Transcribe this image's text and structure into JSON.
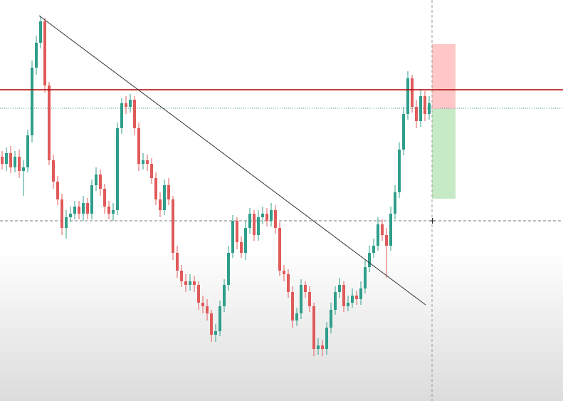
{
  "chart_data": {
    "type": "candlestick",
    "ylim": [
      37,
      600
    ],
    "up_color": "#2f9e8a",
    "down_color": "#e05a5a",
    "open": [
      380,
      370,
      385,
      365,
      380,
      360,
      365,
      410,
      505,
      540,
      570,
      480,
      375,
      345,
      320,
      280,
      295,
      300,
      310,
      300,
      315,
      300,
      340,
      355,
      335,
      310,
      300,
      305,
      420,
      455,
      450,
      460,
      420,
      370,
      375,
      370,
      350,
      320,
      305,
      340,
      320,
      245,
      220,
      205,
      200,
      205,
      200,
      175,
      170,
      160,
      130,
      135,
      170,
      200,
      245,
      290,
      260,
      245,
      280,
      300,
      270,
      295,
      300,
      290,
      305,
      280,
      220,
      215,
      190,
      150,
      160,
      200,
      190,
      170,
      110,
      115,
      110,
      140,
      165,
      190,
      200,
      170,
      175,
      185,
      180,
      195,
      225,
      245,
      255,
      285,
      270,
      255,
      300,
      330,
      390,
      440,
      490,
      450,
      430,
      465,
      440
    ],
    "high": [
      388,
      393,
      395,
      388,
      390,
      375,
      418,
      515,
      550,
      578,
      575,
      485,
      383,
      353,
      328,
      305,
      310,
      318,
      318,
      325,
      322,
      348,
      365,
      362,
      342,
      318,
      315,
      428,
      462,
      465,
      468,
      465,
      428,
      385,
      383,
      378,
      358,
      330,
      348,
      350,
      325,
      255,
      228,
      215,
      215,
      213,
      205,
      185,
      180,
      165,
      145,
      178,
      208,
      255,
      298,
      295,
      268,
      290,
      308,
      305,
      305,
      310,
      308,
      315,
      312,
      288,
      228,
      222,
      198,
      168,
      208,
      205,
      198,
      175,
      125,
      122,
      148,
      175,
      198,
      210,
      205,
      185,
      195,
      192,
      205,
      235,
      255,
      265,
      295,
      292,
      280,
      310,
      340,
      400,
      450,
      500,
      495,
      460,
      475,
      472,
      465
    ],
    "low": [
      362,
      360,
      357,
      358,
      350,
      325,
      358,
      400,
      495,
      532,
      470,
      368,
      335,
      312,
      270,
      265,
      288,
      292,
      292,
      290,
      292,
      292,
      332,
      325,
      300,
      292,
      290,
      298,
      412,
      440,
      442,
      410,
      360,
      362,
      360,
      342,
      312,
      295,
      298,
      312,
      235,
      210,
      197,
      190,
      192,
      190,
      165,
      160,
      150,
      120,
      120,
      128,
      162,
      192,
      238,
      250,
      238,
      235,
      272,
      262,
      262,
      285,
      282,
      282,
      272,
      212,
      205,
      182,
      140,
      142,
      152,
      182,
      162,
      100,
      102,
      100,
      102,
      132,
      158,
      182,
      162,
      163,
      168,
      172,
      172,
      188,
      218,
      238,
      248,
      262,
      210,
      248,
      292,
      322,
      382,
      432,
      442,
      420,
      422,
      430,
      432
    ],
    "close": [
      370,
      385,
      365,
      380,
      360,
      365,
      410,
      505,
      540,
      570,
      480,
      375,
      345,
      320,
      280,
      295,
      300,
      310,
      300,
      315,
      300,
      340,
      355,
      335,
      310,
      300,
      305,
      420,
      455,
      450,
      460,
      420,
      370,
      375,
      370,
      350,
      320,
      305,
      340,
      320,
      245,
      220,
      205,
      200,
      205,
      200,
      175,
      170,
      160,
      130,
      135,
      170,
      200,
      245,
      290,
      260,
      245,
      280,
      300,
      270,
      295,
      300,
      290,
      305,
      280,
      220,
      215,
      190,
      150,
      160,
      200,
      190,
      170,
      110,
      115,
      110,
      140,
      165,
      190,
      200,
      170,
      175,
      185,
      180,
      195,
      225,
      245,
      255,
      285,
      270,
      255,
      300,
      330,
      390,
      440,
      490,
      450,
      430,
      465,
      440,
      455
    ]
  }
}
